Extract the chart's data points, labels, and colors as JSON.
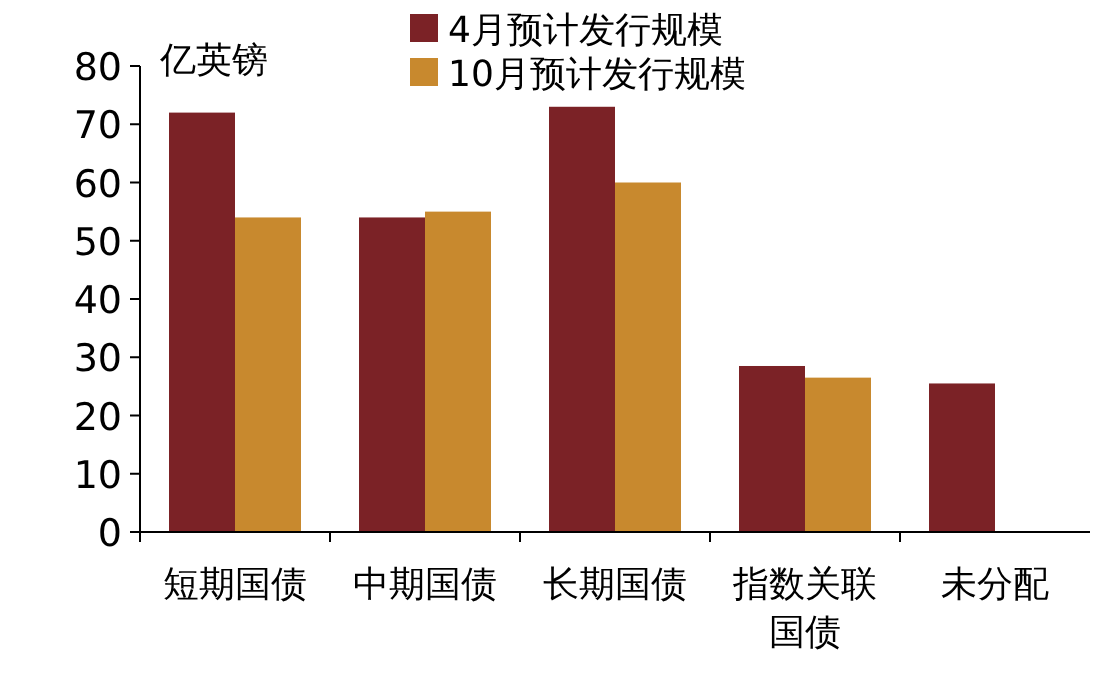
{
  "chart_data": {
    "type": "bar",
    "ylabel": "亿英镑",
    "categories": [
      "短期国债",
      "中期国债",
      "长期国债",
      "指数关联国债",
      "未分配"
    ],
    "series": [
      {
        "name": "4月预计发行规模",
        "color": "#7b2226",
        "values": [
          72,
          54,
          73,
          28.5,
          25.5
        ]
      },
      {
        "name": "10月预计发行规模",
        "color": "#c8892e",
        "values": [
          54,
          55,
          60,
          26.5,
          null
        ]
      }
    ],
    "ylim": [
      0,
      80
    ],
    "yticks": [
      0,
      10,
      20,
      30,
      40,
      50,
      60,
      70,
      80
    ],
    "legend": "top",
    "grid": false
  }
}
